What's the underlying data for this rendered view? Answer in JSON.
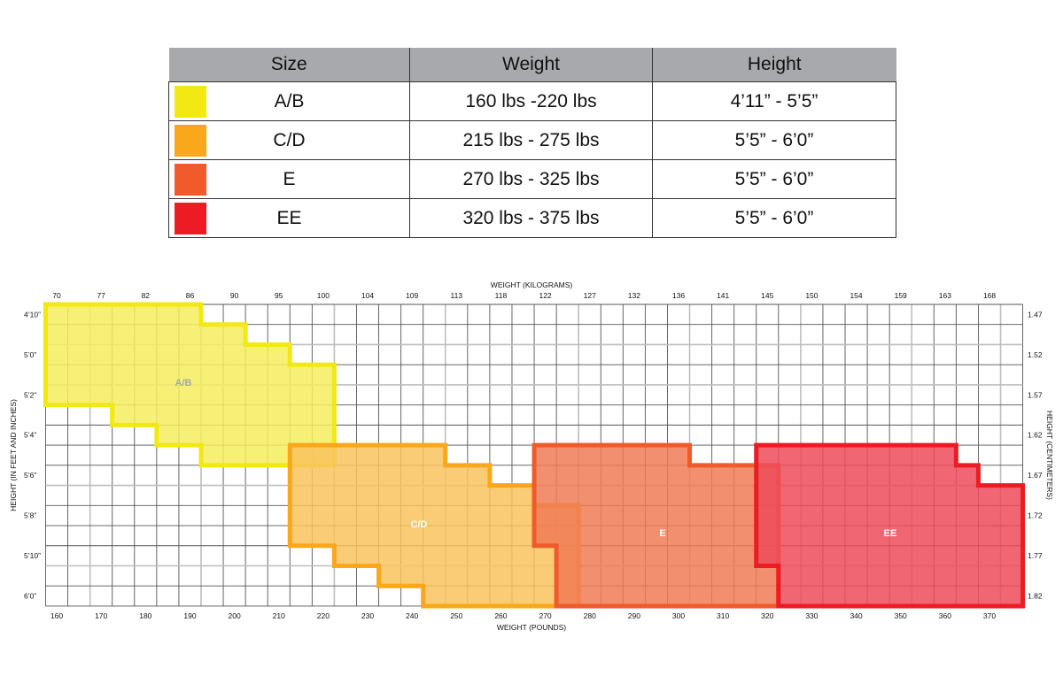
{
  "table": {
    "headers": [
      "Size",
      "Weight",
      "Height"
    ],
    "rows": [
      {
        "size": "A/B",
        "weight": "160 lbs -220 lbs",
        "height": "4’11” -  5’5”",
        "color": "#f2e813"
      },
      {
        "size": "C/D",
        "weight": "215 lbs - 275 lbs",
        "height": "5’5” - 6’0”",
        "color": "#f9a71b"
      },
      {
        "size": "E",
        "weight": "270 lbs - 325 lbs",
        "height": "5’5” - 6’0”",
        "color": "#f15a2b"
      },
      {
        "size": "EE",
        "weight": "320 lbs - 375 lbs",
        "height": "5’5” - 6’0”",
        "color": "#ed1c24"
      }
    ]
  },
  "chart_data": {
    "type": "area",
    "title_top": "WEIGHT (KILOGRAMS)",
    "xlabel": "WEIGHT (POUNDS)",
    "ylabel_left": "HEIGHT (IN FEET AND INCHES)",
    "ylabel_right": "HEIGHT (CENTIMETERS)",
    "xlim_lbs": [
      157.5,
      377.5
    ],
    "ylim_inches": [
      57.5,
      72.5
    ],
    "grid": true,
    "x_ticks_lbs": [
      "160",
      "170",
      "180",
      "190",
      "200",
      "210",
      "220",
      "230",
      "240",
      "250",
      "260",
      "270",
      "280",
      "290",
      "300",
      "310",
      "320",
      "330",
      "340",
      "350",
      "360",
      "370"
    ],
    "x_ticks_kg": [
      "70",
      "77",
      "82",
      "86",
      "90",
      "95",
      "100",
      "104",
      "109",
      "113",
      "118",
      "122",
      "127",
      "132",
      "136",
      "141",
      "145",
      "150",
      "154",
      "159",
      "163",
      "168"
    ],
    "y_ticks_ft": [
      "4’10”",
      "5’0”",
      "5’2”",
      "5’4”",
      "5’6”",
      "5’8”",
      "5’10”",
      "6’0”"
    ],
    "y_ticks_m": [
      "1.47",
      "1.52",
      "1.57",
      "1.62",
      "1.67",
      "1.72",
      "1.77",
      "1.82"
    ],
    "regions": [
      {
        "name": "A/B",
        "color": "#f2e813",
        "fill": "#f5ef5e",
        "label_color": "#a7a9ac",
        "vertices_lbs_in": [
          [
            157.5,
            57.5
          ],
          [
            192.5,
            57.5
          ],
          [
            192.5,
            58.5
          ],
          [
            202.5,
            58.5
          ],
          [
            202.5,
            59.5
          ],
          [
            212.5,
            59.5
          ],
          [
            212.5,
            60.5
          ],
          [
            222.5,
            60.5
          ],
          [
            222.5,
            65.5
          ],
          [
            192.5,
            65.5
          ],
          [
            192.5,
            64.5
          ],
          [
            182.5,
            64.5
          ],
          [
            182.5,
            63.5
          ],
          [
            172.5,
            63.5
          ],
          [
            172.5,
            62.5
          ],
          [
            157.5,
            62.5
          ]
        ]
      },
      {
        "name": "C/D",
        "color": "#f9a71b",
        "fill": "#f9c35e",
        "label_color": "#ffffff",
        "vertices_lbs_in": [
          [
            212.5,
            64.5
          ],
          [
            247.5,
            64.5
          ],
          [
            247.5,
            65.5
          ],
          [
            257.5,
            65.5
          ],
          [
            257.5,
            66.5
          ],
          [
            267.5,
            66.5
          ],
          [
            267.5,
            67.5
          ],
          [
            277.5,
            67.5
          ],
          [
            277.5,
            72.5
          ],
          [
            242.5,
            72.5
          ],
          [
            242.5,
            71.5
          ],
          [
            232.5,
            71.5
          ],
          [
            232.5,
            70.5
          ],
          [
            222.5,
            70.5
          ],
          [
            222.5,
            69.5
          ],
          [
            212.5,
            69.5
          ]
        ]
      },
      {
        "name": "E",
        "color": "#f15a2b",
        "fill": "#f07b55",
        "label_color": "#ffffff",
        "vertices_lbs_in": [
          [
            267.5,
            64.5
          ],
          [
            302.5,
            64.5
          ],
          [
            302.5,
            65.5
          ],
          [
            322.5,
            65.5
          ],
          [
            322.5,
            72.5
          ],
          [
            272.5,
            72.5
          ],
          [
            272.5,
            69.5
          ],
          [
            267.5,
            69.5
          ]
        ]
      },
      {
        "name": "EE",
        "color": "#ed1c24",
        "fill": "#ee4b5a",
        "label_color": "#ffffff",
        "vertices_lbs_in": [
          [
            317.5,
            64.5
          ],
          [
            362.5,
            64.5
          ],
          [
            362.5,
            65.5
          ],
          [
            367.5,
            65.5
          ],
          [
            367.5,
            66.5
          ],
          [
            377.5,
            66.5
          ],
          [
            377.5,
            72.5
          ],
          [
            322.5,
            72.5
          ],
          [
            322.5,
            70.5
          ],
          [
            317.5,
            70.5
          ]
        ]
      }
    ]
  }
}
